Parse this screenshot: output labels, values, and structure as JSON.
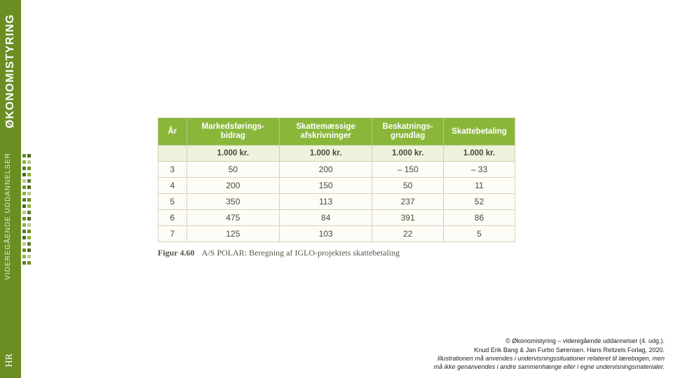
{
  "sidebar": {
    "title": "ØKONOMISTYRING",
    "subtitle": "VIDEREGÅENDE UDDANNELSER",
    "bg_color": "#6b8e23",
    "title_color": "#ffffff",
    "subtitle_color": "#e8efd9",
    "logo": "HR",
    "dot_colors": [
      "#6b8e23",
      "#4a6b1f",
      "#8ab73a",
      "#b9c98e",
      "#5a7a2a"
    ],
    "dot_rows": 18
  },
  "table": {
    "header_bg": "#8ab73a",
    "header_fg": "#ffffff",
    "unit_bg": "#eef3dd",
    "row_bg": "#fdfcf7",
    "border_color": "#c9d4aa",
    "columns": [
      {
        "label": "År",
        "width": "8%"
      },
      {
        "label": "Markedsførings­bidrag",
        "width": "26%"
      },
      {
        "label": "Skattemæssige afskrivninger",
        "width": "26%"
      },
      {
        "label": "Beskatnings­grundlag",
        "width": "20%"
      },
      {
        "label": "Skattebetaling",
        "width": "20%"
      }
    ],
    "unit_row": [
      "",
      "1.000 kr.",
      "1.000 kr.",
      "1.000 kr.",
      "1.000 kr."
    ],
    "rows": [
      [
        "3",
        "50",
        "200",
        "– 150",
        "– 33"
      ],
      [
        "4",
        "200",
        "150",
        "50",
        "11"
      ],
      [
        "5",
        "350",
        "113",
        "237",
        "52"
      ],
      [
        "6",
        "475",
        "84",
        "391",
        "86"
      ],
      [
        "7",
        "125",
        "103",
        "22",
        "5"
      ]
    ]
  },
  "caption": {
    "label": "Figur 4.60",
    "text": "A/S POLAR: Beregning af IGLO-projektets skattebetaling"
  },
  "footer": {
    "line1": "© Økonomistyring – videregående uddannelser (4. udg.).",
    "line2": "Knud Erik Bang & Jan Furbo Sørensen. Hans Reitzels Forlag, 2020.",
    "line3": "Illustrationen må anvendes i undervisningssituationer relateret til lærebogen, men",
    "line4": "må ikke genanvendes i andre sammenhænge eller i egne undervisningsmaterialer."
  }
}
